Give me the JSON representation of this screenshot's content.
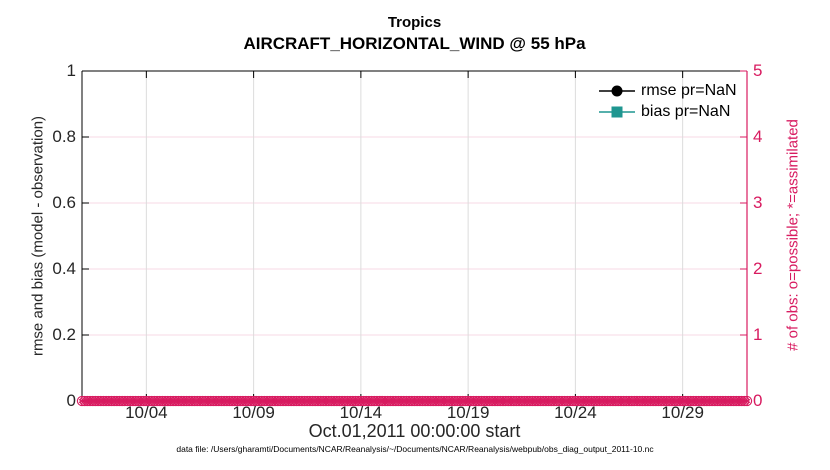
{
  "title": {
    "line1": "Tropics",
    "line2": "AIRCRAFT_HORIZONTAL_WIND @ 55 hPa"
  },
  "axes": {
    "left": {
      "label": "rmse and bias (model - observation)"
    },
    "right": {
      "label": "# of obs: o=possible; *=assimilated"
    },
    "x": {
      "label": "Oct.01,2011 00:00:00 start"
    }
  },
  "legend": [
    {
      "label": "rmse pr=NaN",
      "marker": "circle",
      "color": "#000000"
    },
    {
      "label": "bias pr=NaN",
      "marker": "square",
      "color": "#1f9690"
    }
  ],
  "footer": {
    "datafile": "data file: /Users/gharamti/Documents/NCAR/Reanalysis/~/Documents/NCAR/Reanalysis/webpub/obs_diag_output_2011-10.nc"
  },
  "colors": {
    "accent_pink": "#d81b60",
    "teal": "#1f9690",
    "grid_pink": "#f7d9e5",
    "grid_gray": "#dcdcdc",
    "tick_text": "#262626",
    "black": "#000000"
  },
  "chart_data": {
    "type": "line",
    "title": "Tropics / AIRCRAFT_HORIZONTAL_WIND @ 55 hPa",
    "xlabel": "Oct.01,2011 00:00:00 start",
    "ylabel_left": "rmse and bias (model - observation)",
    "ylabel_right": "# of obs: o=possible; *=assimilated",
    "xlim_days": [
      0,
      31
    ],
    "x_tick_days": [
      3,
      8,
      13,
      18,
      23,
      28
    ],
    "x_tick_labels": [
      "10/04",
      "10/09",
      "10/14",
      "10/19",
      "10/24",
      "10/29"
    ],
    "ylim_left": [
      0,
      1
    ],
    "y_ticks_left": [
      0,
      0.2,
      0.4,
      0.6,
      0.8,
      1
    ],
    "y_tick_labels_left": [
      "0",
      "0.2",
      "0.4",
      "0.6",
      "0.8",
      "1"
    ],
    "ylim_right": [
      0,
      5
    ],
    "y_ticks_right": [
      0,
      1,
      2,
      3,
      4,
      5
    ],
    "y_tick_labels_right": [
      "0",
      "1",
      "2",
      "3",
      "4",
      "5"
    ],
    "grid": true,
    "legend_position": "upper-right-inside, no box",
    "series": [
      {
        "name": "rmse pr=NaN",
        "axis": "left",
        "color": "#000000",
        "marker": "circle",
        "values": "NaN (nothing plotted)"
      },
      {
        "name": "bias pr=NaN",
        "axis": "left",
        "color": "#1f9690",
        "marker": "square",
        "values": "NaN (nothing plotted)"
      },
      {
        "name": "# of obs possible (o)",
        "axis": "right",
        "color": "#d81b60",
        "marker": "o",
        "x_days": {
          "start": 0,
          "end": 31,
          "n_points": 249
        },
        "constant_value": 0
      },
      {
        "name": "# of obs assimilated (*)",
        "axis": "right",
        "color": "#d81b60",
        "marker": "*",
        "x_days": {
          "start": 0,
          "end": 31,
          "n_points": 249
        },
        "constant_value": 0
      }
    ]
  }
}
